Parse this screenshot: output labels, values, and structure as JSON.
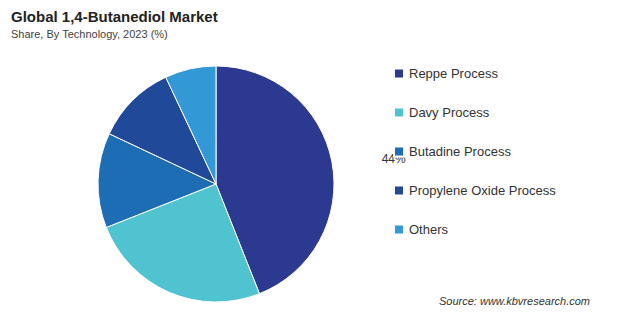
{
  "chart_data": {
    "type": "pie",
    "title": "Global 1,4-Butanediol Market",
    "subtitle": "Share, By Technology, 2023 (%)",
    "categories": [
      "Reppe Process",
      "Davy Process",
      "Butadine Process",
      "Propylene Oxide Process",
      "Others"
    ],
    "values": [
      44,
      25,
      13,
      11,
      7
    ],
    "value_labels": [
      "44%",
      null,
      null,
      null,
      null
    ],
    "data_labels": true,
    "colors": [
      "#2b3990",
      "#4fc4d0",
      "#1c6db3",
      "#21499a",
      "#3399d6"
    ],
    "legend": "right",
    "source": "Source: www.kbvresearch.com"
  }
}
